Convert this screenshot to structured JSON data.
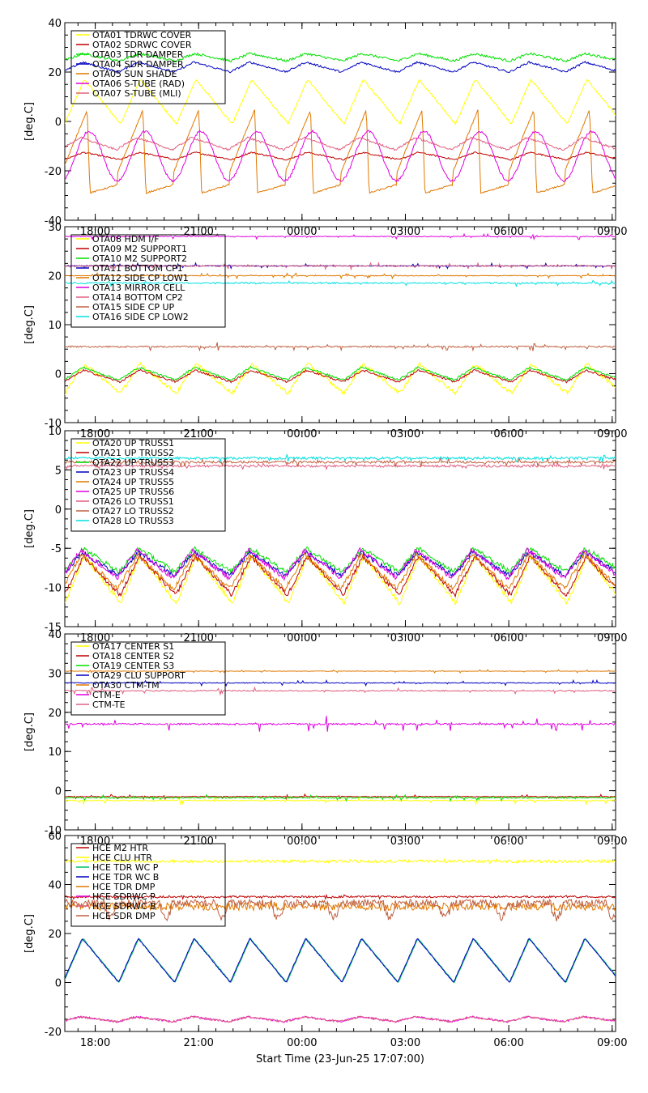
{
  "footer": {
    "start_time": "Start Time (23-Jun-25 17:07:00)"
  },
  "colors": {
    "yellow": "#ffff00",
    "darkred": "#c00000",
    "green": "#00e000",
    "blue": "#0000c0",
    "orange": "#e07800",
    "magenta": "#e000e0",
    "pink": "#e06080",
    "brown": "#c06040",
    "cyan": "#00e0e0"
  },
  "chart_data": [
    {
      "type": "line",
      "ylabel": "[deg.C]",
      "ylim": [
        -40,
        40
      ],
      "yticks": [
        -40,
        -20,
        0,
        20,
        40
      ],
      "xlim_hours": [
        17.117,
        33.1
      ],
      "xticks": [
        "18:00",
        "21:00",
        "00:00",
        "03:00",
        "06:00",
        "09:00"
      ],
      "legend_position": "top-left",
      "series": [
        {
          "name": "OTA01 TDRWC COVER",
          "color": "#ffff00",
          "base": 8,
          "amp": 9,
          "shape": "saw",
          "noise": 0.4
        },
        {
          "name": "OTA02 SDRWC COVER",
          "color": "#c00000",
          "base": -14,
          "amp": 1.5,
          "shape": "saw",
          "noise": 0.3
        },
        {
          "name": "OTA03 TDR DAMPER",
          "color": "#00e000",
          "base": 26,
          "amp": 1.5,
          "shape": "saw",
          "noise": 0.5
        },
        {
          "name": "OTA04 SDR DAMPER",
          "color": "#0000c0",
          "base": 22,
          "amp": 2,
          "shape": "saw",
          "noise": 0.4
        },
        {
          "name": "OTA05 SUN SHADE",
          "color": "#e07800",
          "base": -12,
          "amp": 17,
          "shape": "spike",
          "noise": 0.3
        },
        {
          "name": "OTA06 S-TUBE (RAD)",
          "color": "#e000e0",
          "base": -14,
          "amp": 10,
          "shape": "sine",
          "noise": 0.5
        },
        {
          "name": "OTA07 S-TUBE (MLI)",
          "color": "#e06080",
          "base": -9,
          "amp": 2.5,
          "shape": "saw",
          "noise": 0.4
        }
      ]
    },
    {
      "type": "line",
      "ylabel": "[deg.C]",
      "ylim": [
        -10,
        30
      ],
      "yticks": [
        -10,
        0,
        10,
        20,
        30
      ],
      "xlim_hours": [
        17.117,
        33.1
      ],
      "xticks": [
        "18:00",
        "21:00",
        "00:00",
        "03:00",
        "06:00",
        "09:00"
      ],
      "legend_position": "top-left",
      "series": [
        {
          "name": "OTA08 HDM I/F",
          "color": "#ffff00",
          "base": -1,
          "amp": 3,
          "shape": "saw",
          "noise": 0.4
        },
        {
          "name": "OTA09 M2 SUPPORT1",
          "color": "#c00000",
          "base": -0.5,
          "amp": 1.2,
          "shape": "saw",
          "noise": 0.2
        },
        {
          "name": "OTA10 M2 SUPPORT2",
          "color": "#00e000",
          "base": 0,
          "amp": 1.3,
          "shape": "saw",
          "noise": 0.2
        },
        {
          "name": "OTA11 BOTTOM CP1",
          "color": "#0000c0",
          "base": 22,
          "amp": 0.3,
          "shape": "flat",
          "noise": 0.15
        },
        {
          "name": "OTA12 SIDE CP LOW1",
          "color": "#e07800",
          "base": 20,
          "amp": 0.3,
          "shape": "flat",
          "noise": 0.15
        },
        {
          "name": "OTA13 MIRROR CELL",
          "color": "#e000e0",
          "base": 28,
          "amp": 0.3,
          "shape": "flat",
          "noise": 0.15
        },
        {
          "name": "OTA14 BOTTOM CP2",
          "color": "#e06080",
          "base": 22,
          "amp": 0.3,
          "shape": "flat",
          "noise": 0.3
        },
        {
          "name": "OTA15 SIDE CP UP",
          "color": "#c06040",
          "base": 5.5,
          "amp": 0.4,
          "shape": "flat",
          "noise": 0.3
        },
        {
          "name": "OTA16 SIDE CP LOW2",
          "color": "#00e0e0",
          "base": 18.5,
          "amp": 0.3,
          "shape": "flat",
          "noise": 0.3
        }
      ]
    },
    {
      "type": "line",
      "ylabel": "[deg.C]",
      "ylim": [
        -15,
        10
      ],
      "yticks": [
        -15,
        -10,
        -5,
        0,
        5,
        10
      ],
      "xlim_hours": [
        17.117,
        33.1
      ],
      "xticks": [
        "18:00",
        "21:00",
        "00:00",
        "03:00",
        "06:00",
        "09:00"
      ],
      "legend_position": "top-left",
      "series": [
        {
          "name": "OTA20 UP TRUSS1",
          "color": "#ffff00",
          "base": -9,
          "amp": 3,
          "shape": "saw",
          "noise": 0.3
        },
        {
          "name": "OTA21 UP TRUSS2",
          "color": "#c00000",
          "base": -8.5,
          "amp": 2.5,
          "shape": "saw",
          "noise": 0.3
        },
        {
          "name": "OTA22 UP TRUSS3",
          "color": "#00e000",
          "base": -6.5,
          "amp": 1.5,
          "shape": "saw",
          "noise": 0.3
        },
        {
          "name": "OTA23 UP TRUSS4",
          "color": "#0000c0",
          "base": -7,
          "amp": 1.5,
          "shape": "saw",
          "noise": 0.3
        },
        {
          "name": "OTA24 UP TRUSS5",
          "color": "#e07800",
          "base": -8,
          "amp": 2.2,
          "shape": "saw",
          "noise": 0.3
        },
        {
          "name": "OTA25 UP TRUSS6",
          "color": "#e000e0",
          "base": -7,
          "amp": 1.8,
          "shape": "saw",
          "noise": 0.3
        },
        {
          "name": "OTA26 LO TRUSS1",
          "color": "#e06080",
          "base": 5.5,
          "amp": 0.2,
          "shape": "flat",
          "noise": 0.3
        },
        {
          "name": "OTA27 LO TRUSS2",
          "color": "#c06040",
          "base": 6,
          "amp": 0.3,
          "shape": "flat",
          "noise": 0.3
        },
        {
          "name": "OTA28 LO TRUSS3",
          "color": "#00e0e0",
          "base": 6.5,
          "amp": 0.2,
          "shape": "flat",
          "noise": 0.3
        }
      ]
    },
    {
      "type": "line",
      "ylabel": "[deg.C]",
      "ylim": [
        -10,
        40
      ],
      "yticks": [
        -10,
        0,
        10,
        20,
        30,
        40
      ],
      "xlim_hours": [
        17.117,
        33.1
      ],
      "xticks": [
        "18:00",
        "21:00",
        "00:00",
        "03:00",
        "06:00",
        "09:00"
      ],
      "legend_position": "top-left",
      "series": [
        {
          "name": "OTA17 CENTER S1",
          "color": "#ffff00",
          "base": -2.5,
          "amp": 0.6,
          "shape": "flat",
          "noise": 0.3
        },
        {
          "name": "OTA18 CENTER S2",
          "color": "#c00000",
          "base": -1.5,
          "amp": 0.3,
          "shape": "flat",
          "noise": 0.2
        },
        {
          "name": "OTA19 CENTER S3",
          "color": "#00e000",
          "base": -1.8,
          "amp": 0.4,
          "shape": "flat",
          "noise": 0.3
        },
        {
          "name": "OTA29 CLU SUPPORT",
          "color": "#0000c0",
          "base": 27.5,
          "amp": 0.4,
          "shape": "flat",
          "noise": 0.2
        },
        {
          "name": "OTA30 CTM-TM",
          "color": "#e07800",
          "base": 30.5,
          "amp": 0.2,
          "shape": "flat",
          "noise": 0.1
        },
        {
          "name": "CTM-E",
          "color": "#e000e0",
          "base": 17,
          "amp": 1,
          "shape": "flat",
          "noise": 0.4
        },
        {
          "name": "CTM-TE",
          "color": "#e06080",
          "base": 25.5,
          "amp": 0.5,
          "shape": "flat",
          "noise": 0.3
        }
      ]
    },
    {
      "type": "line",
      "ylabel": "[deg.C]",
      "ylim": [
        -20,
        60
      ],
      "yticks": [
        -20,
        0,
        20,
        40,
        60
      ],
      "xlim_hours": [
        17.117,
        33.1
      ],
      "xticks": [
        "18:00",
        "21:00",
        "00:00",
        "03:00",
        "06:00",
        "09:00"
      ],
      "xlabel": "Start Time (23-Jun-25 17:07:00)",
      "legend_position": "top-left",
      "series": [
        {
          "name": "HCE M2 HTR",
          "color": "#c00000",
          "base": 35,
          "amp": 0.3,
          "shape": "flat",
          "noise": 0.8
        },
        {
          "name": "HCE CLU HTR",
          "color": "#ffff00",
          "base": 49.5,
          "amp": 0.3,
          "shape": "flat",
          "noise": 1.2
        },
        {
          "name": "HCE TDR WC P",
          "color": "#00c060",
          "base": 9,
          "amp": 9,
          "shape": "saw",
          "noise": 0.2
        },
        {
          "name": "HCE TDR WC B",
          "color": "#0000c0",
          "base": 9,
          "amp": 9,
          "shape": "saw",
          "noise": 0.2
        },
        {
          "name": "HCE TDR DMP",
          "color": "#e07800",
          "base": 31,
          "amp": 0.5,
          "shape": "flat",
          "noise": 3
        },
        {
          "name": "HCE SDRWC P",
          "color": "#e000e0",
          "base": -15,
          "amp": 1,
          "shape": "saw",
          "noise": 0.4
        },
        {
          "name": "HCE SDRWC B",
          "color": "#e06080",
          "base": -15,
          "amp": 1,
          "shape": "saw",
          "noise": 0.4
        },
        {
          "name": "HCE SDR DMP",
          "color": "#c06040",
          "base": 30,
          "amp": 4,
          "shape": "dip",
          "noise": 1.5
        }
      ]
    }
  ]
}
